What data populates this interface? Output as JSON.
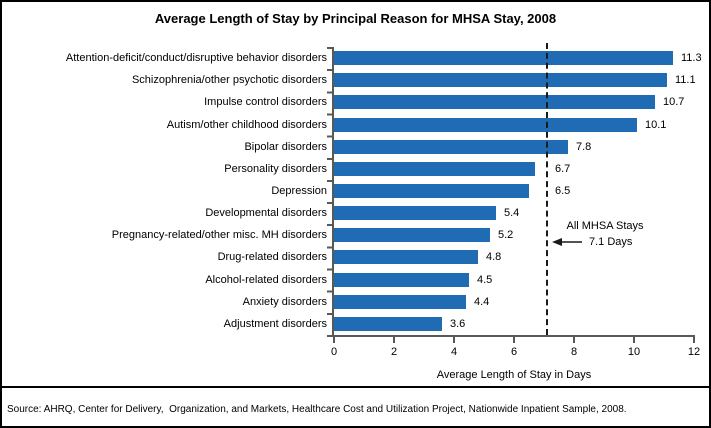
{
  "chart_data": {
    "type": "bar",
    "orientation": "horizontal",
    "title": "Average Length of Stay by Principal Reason for MHSA Stay, 2008",
    "categories": [
      "Attention-deficit/conduct/disruptive behavior disorders",
      "Schizophrenia/other psychotic disorders",
      "Impulse control disorders",
      "Autism/other childhood disorders",
      "Bipolar disorders",
      "Personality disorders",
      "Depression",
      "Developmental disorders",
      "Pregnancy-related/other misc. MH disorders",
      "Drug-related disorders",
      "Alcohol-related disorders",
      "Anxiety disorders",
      "Adjustment disorders"
    ],
    "values": [
      11.3,
      11.1,
      10.7,
      10.1,
      7.8,
      6.7,
      6.5,
      5.4,
      5.2,
      4.8,
      4.5,
      4.4,
      3.6
    ],
    "xlabel": "Average Length of Stay in Days",
    "xlim": [
      0,
      12
    ],
    "x_tick_labels": [
      "0",
      "2",
      "4",
      "6",
      "8",
      "10",
      "12"
    ],
    "bar_color": "#1F6CB4",
    "grid": false,
    "legend": "none",
    "reference_line": {
      "value": 7.1,
      "style": "dashed-vertical",
      "label_line1": "All MHSA Stays",
      "label_line2": "7.1 Days"
    }
  },
  "source_note": "Source: AHRQ, Center for Delivery,  Organization, and Markets, Healthcare Cost and Utilization Project, Nationwide Inpatient Sample, 2008."
}
